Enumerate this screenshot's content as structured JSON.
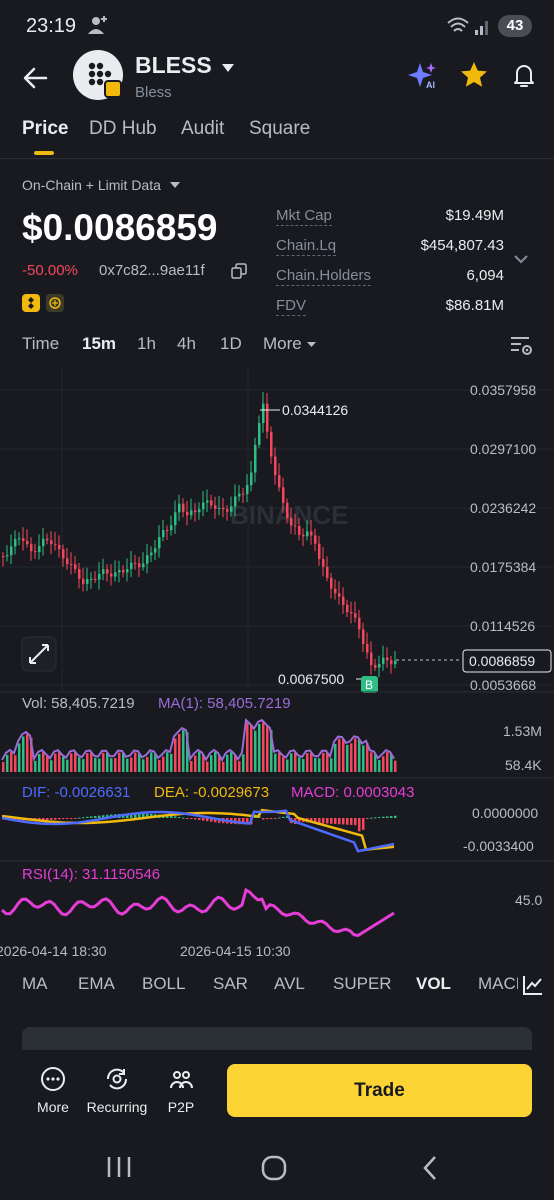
{
  "status_bar": {
    "time": "23:19",
    "battery": "43"
  },
  "header": {
    "title": "BLESS",
    "subtitle": "Bless"
  },
  "tabs": [
    {
      "label": "Price",
      "active": true
    },
    {
      "label": "DD Hub",
      "active": false
    },
    {
      "label": "Audit",
      "active": false
    },
    {
      "label": "Square",
      "active": false
    }
  ],
  "data_source": "On-Chain + Limit Data",
  "token": {
    "price": "$0.0086859",
    "change": "-50.00%",
    "address": "0x7c82...9ae11f"
  },
  "stats": [
    {
      "label": "Mkt Cap",
      "value": "$19.49M"
    },
    {
      "label": "Chain.Lq",
      "value": "$454,807.43"
    },
    {
      "label": "Chain.Holders",
      "value": "6,094"
    },
    {
      "label": "FDV",
      "value": "$86.81M"
    }
  ],
  "intervals": [
    {
      "label": "Time",
      "active": false
    },
    {
      "label": "15m",
      "active": true
    },
    {
      "label": "1h",
      "active": false
    },
    {
      "label": "4h",
      "active": false
    },
    {
      "label": "1D",
      "active": false
    },
    {
      "label": "More",
      "active": false
    }
  ],
  "chart": {
    "price_axis": [
      "0.0357958",
      "0.0297100",
      "0.0236242",
      "0.0175384",
      "0.0114526",
      "0.0053668"
    ],
    "current_price": "0.0086859",
    "high_marker": "0.0344126",
    "low_marker": "0.0067500",
    "buy_marker": "B",
    "watermark": "BINANCE",
    "volume_label": "Vol: 58,405.7219",
    "volume_ma_label": "MA(1): 58,405.7219",
    "volume_axis": [
      "1.53M",
      "58.4K"
    ],
    "dif_label": "DIF: -0.0026631",
    "dea_label": "DEA: -0.0029673",
    "macd_label": "MACD: 0.0003043",
    "macd_axis": [
      "0.0000000",
      "-0.0033400"
    ],
    "rsi_label": "RSI(14): 31.1150546",
    "rsi_axis": "45.0",
    "time_labels": [
      "2026-04-14 18:30",
      "2026-04-15 10:30"
    ],
    "colors": {
      "up": "#2ebd85",
      "down": "#f6465d",
      "dif": "#4f6bff",
      "dea": "#f0b90b",
      "rsi": "#e53dd6",
      "vol_ma": "#9b6bd6"
    }
  },
  "indicator_tabs": [
    {
      "label": "MA",
      "active": false
    },
    {
      "label": "EMA",
      "active": false
    },
    {
      "label": "BOLL",
      "active": false
    },
    {
      "label": "SAR",
      "active": false
    },
    {
      "label": "AVL",
      "active": false
    },
    {
      "label": "SUPER",
      "active": false
    },
    {
      "label": "VOL",
      "active": true
    },
    {
      "label": "MACD",
      "active": false
    }
  ],
  "bottom_bar": {
    "more": "More",
    "recurring": "Recurring",
    "p2p": "P2P",
    "trade": "Trade"
  }
}
